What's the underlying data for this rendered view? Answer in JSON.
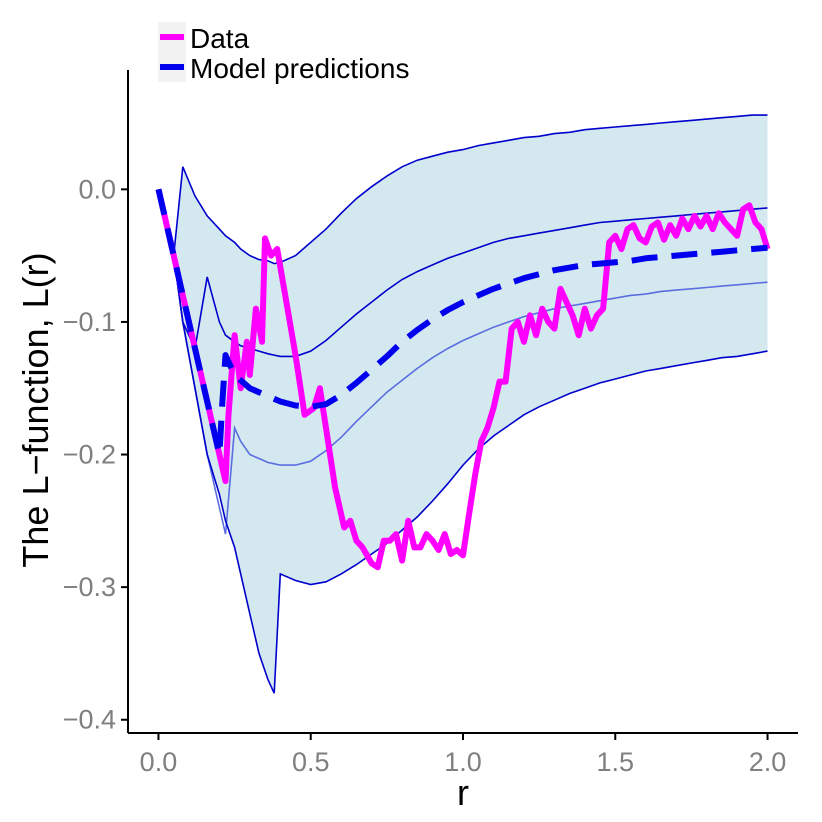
{
  "chart_data": {
    "type": "line",
    "title": "",
    "xlabel": "r",
    "ylabel": "The L−function, L(r)",
    "xlim": [
      -0.1,
      2.1
    ],
    "ylim": [
      -0.41,
      0.09
    ],
    "xticks": [
      0.0,
      0.5,
      1.0,
      1.5,
      2.0
    ],
    "xtick_labels": [
      "0.0",
      "0.5",
      "1.0",
      "1.5",
      "2.0"
    ],
    "yticks": [
      0.0,
      -0.1,
      -0.2,
      -0.3,
      -0.4
    ],
    "ytick_labels": [
      "0.0",
      "−0.1",
      "−0.2",
      "−0.3",
      "−0.4"
    ],
    "grid": false,
    "legend_position": "top-left",
    "colors": {
      "data": "#ff00ff",
      "model": "#0000ee",
      "band_fill": "#d4e8f0",
      "band_line": "#0000cc",
      "inner_line": "#5a6ee0",
      "axis": "#000000",
      "tick_label": "#7f7f7f"
    },
    "series": [
      {
        "name": "Data",
        "style": "solid",
        "x": [
          0.0,
          0.05,
          0.08,
          0.12,
          0.16,
          0.2,
          0.22,
          0.23,
          0.25,
          0.27,
          0.29,
          0.3,
          0.32,
          0.34,
          0.35,
          0.37,
          0.39,
          0.42,
          0.45,
          0.48,
          0.51,
          0.53,
          0.55,
          0.58,
          0.61,
          0.63,
          0.65,
          0.67,
          0.7,
          0.72,
          0.74,
          0.76,
          0.78,
          0.8,
          0.82,
          0.84,
          0.86,
          0.88,
          0.9,
          0.92,
          0.94,
          0.96,
          0.98,
          1.0,
          1.02,
          1.04,
          1.06,
          1.08,
          1.1,
          1.12,
          1.14,
          1.16,
          1.18,
          1.2,
          1.22,
          1.24,
          1.26,
          1.28,
          1.3,
          1.32,
          1.34,
          1.36,
          1.38,
          1.4,
          1.42,
          1.44,
          1.46,
          1.48,
          1.5,
          1.52,
          1.54,
          1.56,
          1.58,
          1.6,
          1.62,
          1.64,
          1.66,
          1.68,
          1.7,
          1.72,
          1.74,
          1.76,
          1.78,
          1.8,
          1.82,
          1.84,
          1.86,
          1.88,
          1.9,
          1.92,
          1.94,
          1.96,
          1.98,
          2.0
        ],
        "values": [
          0.0,
          -0.05,
          -0.08,
          -0.12,
          -0.16,
          -0.2,
          -0.22,
          -0.17,
          -0.11,
          -0.15,
          -0.115,
          -0.14,
          -0.09,
          -0.115,
          -0.037,
          -0.05,
          -0.045,
          -0.085,
          -0.125,
          -0.17,
          -0.165,
          -0.15,
          -0.18,
          -0.225,
          -0.255,
          -0.25,
          -0.265,
          -0.27,
          -0.282,
          -0.285,
          -0.265,
          -0.265,
          -0.26,
          -0.28,
          -0.25,
          -0.27,
          -0.27,
          -0.26,
          -0.265,
          -0.272,
          -0.26,
          -0.275,
          -0.272,
          -0.276,
          -0.245,
          -0.215,
          -0.19,
          -0.18,
          -0.165,
          -0.145,
          -0.145,
          -0.105,
          -0.1,
          -0.115,
          -0.095,
          -0.11,
          -0.09,
          -0.1,
          -0.105,
          -0.075,
          -0.085,
          -0.095,
          -0.11,
          -0.09,
          -0.105,
          -0.095,
          -0.09,
          -0.04,
          -0.035,
          -0.045,
          -0.03,
          -0.027,
          -0.037,
          -0.04,
          -0.028,
          -0.025,
          -0.038,
          -0.027,
          -0.035,
          -0.022,
          -0.03,
          -0.02,
          -0.028,
          -0.02,
          -0.03,
          -0.018,
          -0.025,
          -0.03,
          -0.035,
          -0.015,
          -0.012,
          -0.025,
          -0.03,
          -0.045
        ]
      },
      {
        "name": "Model predictions",
        "style": "dashed",
        "x": [
          0.0,
          0.05,
          0.1,
          0.15,
          0.2,
          0.21,
          0.22,
          0.25,
          0.3,
          0.35,
          0.4,
          0.45,
          0.5,
          0.55,
          0.6,
          0.65,
          0.7,
          0.75,
          0.8,
          0.85,
          0.9,
          0.95,
          1.0,
          1.05,
          1.1,
          1.15,
          1.2,
          1.25,
          1.3,
          1.35,
          1.4,
          1.45,
          1.5,
          1.55,
          1.6,
          1.65,
          1.7,
          1.75,
          1.8,
          1.85,
          1.9,
          1.95,
          2.0
        ],
        "values": [
          0.0,
          -0.05,
          -0.1,
          -0.15,
          -0.2,
          -0.16,
          -0.125,
          -0.14,
          -0.15,
          -0.155,
          -0.16,
          -0.163,
          -0.164,
          -0.162,
          -0.155,
          -0.146,
          -0.136,
          -0.126,
          -0.115,
          -0.106,
          -0.098,
          -0.091,
          -0.085,
          -0.08,
          -0.075,
          -0.071,
          -0.067,
          -0.064,
          -0.061,
          -0.059,
          -0.057,
          -0.056,
          -0.055,
          -0.054,
          -0.052,
          -0.051,
          -0.05,
          -0.049,
          -0.048,
          -0.047,
          -0.046,
          -0.045,
          -0.044
        ]
      }
    ],
    "envelope": {
      "x": [
        0.0,
        0.05,
        0.08,
        0.12,
        0.16,
        0.2,
        0.22,
        0.25,
        0.27,
        0.3,
        0.33,
        0.36,
        0.38,
        0.4,
        0.45,
        0.5,
        0.55,
        0.6,
        0.65,
        0.7,
        0.75,
        0.8,
        0.85,
        0.9,
        0.95,
        1.0,
        1.05,
        1.1,
        1.15,
        1.2,
        1.25,
        1.3,
        1.35,
        1.4,
        1.45,
        1.5,
        1.55,
        1.6,
        1.65,
        1.7,
        1.75,
        1.8,
        1.85,
        1.9,
        1.95,
        2.0
      ],
      "upper": [
        0.0,
        -0.05,
        0.017,
        -0.005,
        -0.02,
        -0.03,
        -0.035,
        -0.04,
        -0.045,
        -0.05,
        -0.053,
        -0.054,
        -0.056,
        -0.055,
        -0.05,
        -0.04,
        -0.03,
        -0.018,
        -0.007,
        0.002,
        0.01,
        0.017,
        0.022,
        0.025,
        0.028,
        0.03,
        0.033,
        0.035,
        0.037,
        0.039,
        0.04,
        0.042,
        0.043,
        0.045,
        0.046,
        0.047,
        0.048,
        0.049,
        0.05,
        0.051,
        0.052,
        0.053,
        0.054,
        0.055,
        0.056,
        0.056
      ],
      "upper_mid": [
        0.0,
        -0.05,
        -0.1,
        -0.12,
        -0.066,
        -0.1,
        -0.11,
        -0.115,
        -0.118,
        -0.12,
        -0.122,
        -0.124,
        -0.125,
        -0.126,
        -0.126,
        -0.122,
        -0.114,
        -0.104,
        -0.094,
        -0.085,
        -0.076,
        -0.068,
        -0.062,
        -0.057,
        -0.052,
        -0.048,
        -0.044,
        -0.04,
        -0.037,
        -0.035,
        -0.033,
        -0.031,
        -0.029,
        -0.027,
        -0.025,
        -0.024,
        -0.023,
        -0.022,
        -0.021,
        -0.02,
        -0.019,
        -0.018,
        -0.017,
        -0.016,
        -0.015,
        -0.014
      ],
      "lower_mid": [
        0.0,
        -0.05,
        -0.1,
        -0.15,
        -0.2,
        -0.24,
        -0.26,
        -0.18,
        -0.19,
        -0.2,
        -0.203,
        -0.206,
        -0.207,
        -0.208,
        -0.208,
        -0.205,
        -0.197,
        -0.187,
        -0.175,
        -0.164,
        -0.153,
        -0.144,
        -0.135,
        -0.127,
        -0.12,
        -0.114,
        -0.109,
        -0.104,
        -0.1,
        -0.096,
        -0.093,
        -0.09,
        -0.088,
        -0.086,
        -0.084,
        -0.082,
        -0.08,
        -0.079,
        -0.077,
        -0.076,
        -0.075,
        -0.074,
        -0.073,
        -0.072,
        -0.071,
        -0.07
      ],
      "lower": [
        0.0,
        -0.05,
        -0.1,
        -0.15,
        -0.2,
        -0.23,
        -0.25,
        -0.27,
        -0.29,
        -0.32,
        -0.35,
        -0.37,
        -0.38,
        -0.29,
        -0.295,
        -0.298,
        -0.296,
        -0.29,
        -0.283,
        -0.275,
        -0.267,
        -0.257,
        -0.247,
        -0.235,
        -0.222,
        -0.208,
        -0.196,
        -0.186,
        -0.178,
        -0.17,
        -0.164,
        -0.159,
        -0.154,
        -0.15,
        -0.146,
        -0.143,
        -0.14,
        -0.137,
        -0.135,
        -0.133,
        -0.131,
        -0.129,
        -0.127,
        -0.126,
        -0.124,
        -0.122
      ]
    }
  }
}
